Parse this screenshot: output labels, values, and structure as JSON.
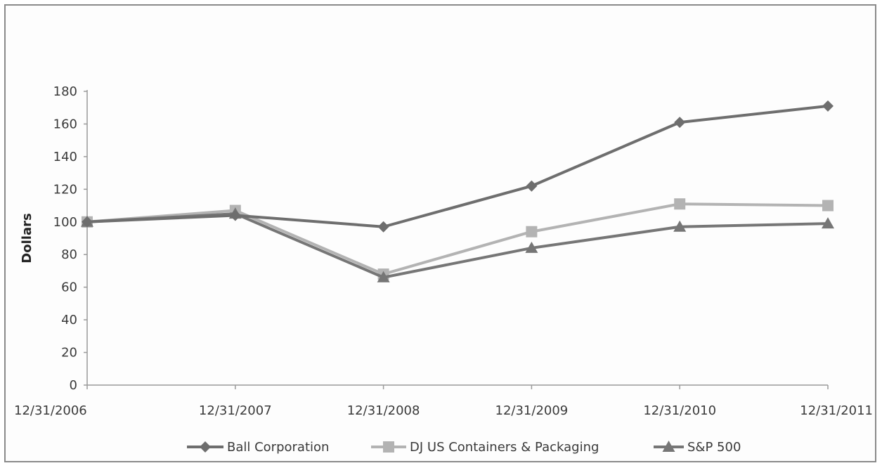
{
  "chart_data": {
    "type": "line",
    "x": [
      "12/31/2006",
      "12/31/2007",
      "12/31/2008",
      "12/31/2009",
      "12/31/2010",
      "12/31/2011"
    ],
    "ylabel": "Dollars",
    "ylim": [
      0,
      180
    ],
    "yticks": [
      "0",
      "20",
      "40",
      "60",
      "80",
      "100",
      "120",
      "140",
      "160",
      "180"
    ],
    "grid": false,
    "legend_position": "bottom",
    "series": [
      {
        "name": "Ball Corporation",
        "values": [
          100,
          104,
          97,
          122,
          161,
          171
        ],
        "color": "#6e6e6e",
        "marker": "diamond"
      },
      {
        "name": "DJ US Containers & Packaging",
        "values": [
          100,
          107,
          68,
          94,
          111,
          110
        ],
        "color": "#b3b3b3",
        "marker": "square"
      },
      {
        "name": "S&P 500",
        "values": [
          100,
          105,
          66,
          84,
          97,
          99
        ],
        "color": "#767676",
        "marker": "triangle"
      }
    ]
  }
}
